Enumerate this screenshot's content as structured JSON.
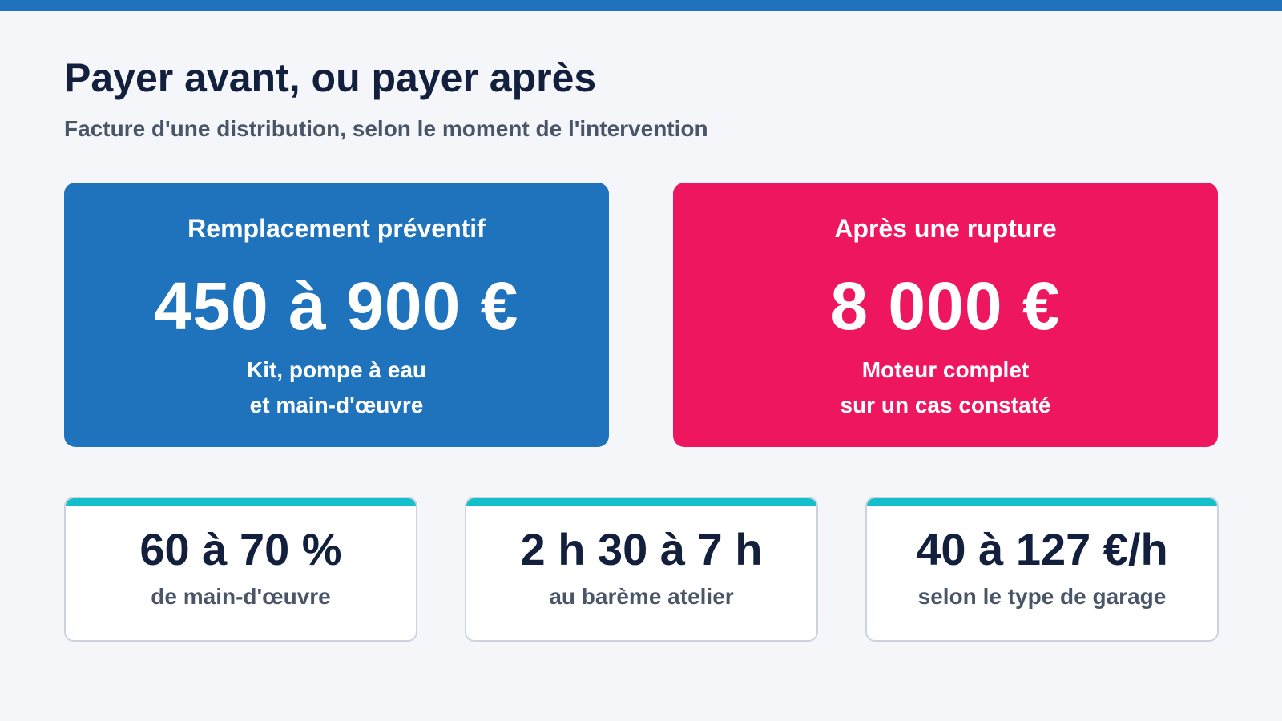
{
  "header": {
    "title": "Payer avant, ou payer après",
    "subtitle": "Facture d'une distribution, selon le moment de l'intervention"
  },
  "colors": {
    "accent_bar": "#1f72bc",
    "preventive_card": "#1f72bc",
    "rupture_card": "#ef1660",
    "stat_accent": "#13bfcb",
    "title_text": "#13203d",
    "muted_text": "#4a5568"
  },
  "comparison": {
    "preventive": {
      "label": "Remplacement préventif",
      "value": "450 à 900 €",
      "desc_line1": "Kit, pompe à eau",
      "desc_line2": "et main-d'œuvre"
    },
    "rupture": {
      "label": "Après une rupture",
      "value": "8 000 €",
      "desc_line1": "Moteur complet",
      "desc_line2": "sur un cas constaté"
    }
  },
  "stats": [
    {
      "value": "60 à 70 %",
      "desc": "de main-d'œuvre"
    },
    {
      "value": "2 h 30 à 7 h",
      "desc": "au barème atelier"
    },
    {
      "value": "40 à 127 €/h",
      "desc": "selon le type de garage"
    }
  ]
}
